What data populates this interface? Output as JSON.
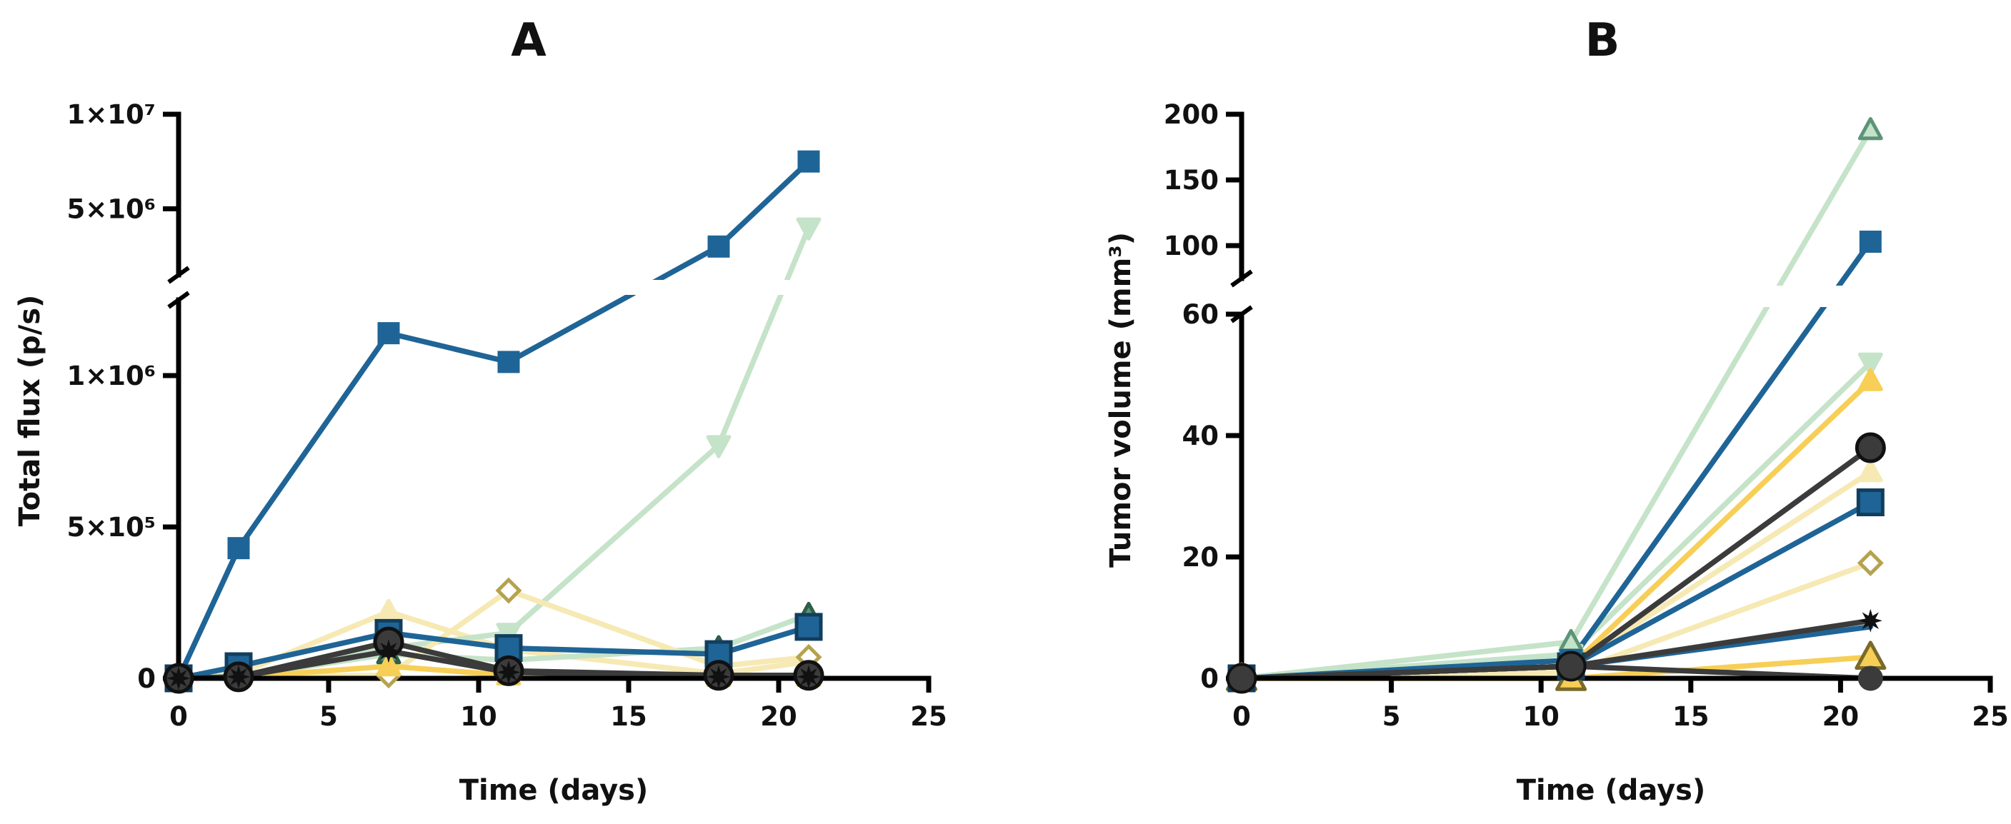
{
  "figure": {
    "panels": [
      "A",
      "B"
    ]
  },
  "colors": {
    "dark_blue": "#1f6496",
    "navy_outline": "#123e5e",
    "light_green": "#c5e3c8",
    "teal_green": "#5d9479",
    "yellow": "#f7cf57",
    "light_yellow": "#f6e9b3",
    "olive": "#b5a24f",
    "dark_gray": "#3b3b3b",
    "black": "#111111"
  },
  "chart_data": [
    {
      "id": "A",
      "type": "line",
      "title": "A",
      "xlabel": "Time (days)",
      "ylabel": "Total flux (p/s)",
      "xlim": [
        0,
        25
      ],
      "x_ticks": [
        0,
        5,
        10,
        15,
        20,
        25
      ],
      "x_tick_labels": [
        "0",
        "5",
        "10",
        "15",
        "20",
        "25"
      ],
      "y_axis_break": {
        "lower": [
          0,
          1250000
        ],
        "upper": [
          1500000,
          10000000
        ],
        "lower_ticks": [
          0,
          500000,
          1000000
        ],
        "lower_tick_labels": [
          "0",
          "5×10⁵",
          "1×10⁶"
        ],
        "upper_ticks": [
          5000000,
          10000000
        ],
        "upper_tick_labels": [
          "5×10⁶",
          "1×10⁷"
        ]
      },
      "series": [
        {
          "name": "pale yellow triangle",
          "color": "#f6e9b3",
          "marker": "triangle",
          "marker_fill": "#f6e9b3",
          "marker_stroke": "#f6e9b3",
          "x": [
            0,
            2,
            7,
            11,
            18,
            21
          ],
          "values": [
            0,
            15000,
            220000,
            95000,
            15000,
            55000
          ]
        },
        {
          "name": "light green inverted triangle",
          "color": "#c5e3c8",
          "marker": "triangle-down",
          "marker_fill": "#c5e3c8",
          "marker_stroke": "#c5e3c8",
          "x": [
            0,
            2,
            7,
            11,
            18,
            21
          ],
          "values": [
            0,
            8000,
            100000,
            150000,
            770000,
            4000000
          ]
        },
        {
          "name": "teal triangle",
          "color": "#c5e3c8",
          "marker": "triangle",
          "marker_fill": "#5d9479",
          "marker_stroke": "#2f5e49",
          "x": [
            0,
            2,
            7,
            11,
            18,
            21
          ],
          "values": [
            0,
            5000,
            80000,
            60000,
            100000,
            210000
          ]
        },
        {
          "name": "olive diamond",
          "color": "#f6e9b3",
          "marker": "diamond",
          "marker_fill": "#ffffff",
          "marker_stroke": "#b5a24f",
          "x": [
            0,
            2,
            7,
            11,
            18,
            21
          ],
          "values": [
            0,
            5000,
            10000,
            290000,
            40000,
            70000
          ]
        },
        {
          "name": "yellow triangle",
          "color": "#f7cf57",
          "marker": "triangle",
          "marker_fill": "#f7cf57",
          "marker_stroke": "#f7cf57",
          "x": [
            0,
            2,
            7,
            11,
            18,
            21
          ],
          "values": [
            0,
            3000,
            40000,
            10000,
            5000,
            5000
          ]
        },
        {
          "name": "blue square outlined",
          "color": "#1f6496",
          "marker": "square",
          "marker_fill": "#1f6496",
          "marker_stroke": "#123e5e",
          "x": [
            0,
            2,
            7,
            11,
            18,
            21
          ],
          "values": [
            0,
            40000,
            150000,
            100000,
            80000,
            170000
          ]
        },
        {
          "name": "blue square small",
          "color": "#1f6496",
          "marker": "square",
          "marker_fill": "#1f6496",
          "marker_stroke": "#1f6496",
          "x": [
            0,
            2,
            7,
            11,
            18,
            21
          ],
          "values": [
            0,
            430000,
            1140000,
            1045000,
            3000000,
            7500000
          ]
        },
        {
          "name": "dark gray circle",
          "color": "#3b3b3b",
          "marker": "circle",
          "marker_fill": "#3b3b3b",
          "marker_stroke": "#111111",
          "x": [
            0,
            2,
            7,
            11,
            18,
            21
          ],
          "values": [
            0,
            5000,
            120000,
            25000,
            10000,
            10000
          ]
        },
        {
          "name": "black asterisk",
          "color": "#3b3b3b",
          "marker": "star",
          "marker_fill": "#111111",
          "marker_stroke": "#111111",
          "x": [
            0,
            2,
            7,
            11,
            18,
            21
          ],
          "values": [
            0,
            5000,
            90000,
            20000,
            5000,
            5000
          ]
        }
      ]
    },
    {
      "id": "B",
      "type": "line",
      "title": "B",
      "xlabel": "Time (days)",
      "ylabel": "Tumor volume (mm³)",
      "xlim": [
        0,
        25
      ],
      "x_ticks": [
        0,
        5,
        10,
        15,
        20,
        25
      ],
      "x_tick_labels": [
        "0",
        "5",
        "10",
        "15",
        "20",
        "25"
      ],
      "y_axis_break": {
        "lower": [
          0,
          60
        ],
        "upper": [
          75,
          200
        ],
        "lower_ticks": [
          0,
          20,
          40,
          60
        ],
        "lower_tick_labels": [
          "0",
          "20",
          "40",
          "60"
        ],
        "upper_ticks": [
          100,
          150,
          200
        ],
        "upper_tick_labels": [
          "100",
          "150",
          "200"
        ]
      },
      "series": [
        {
          "name": "pale yellow triangle",
          "color": "#f6e9b3",
          "marker": "triangle",
          "marker_fill": "#f6e9b3",
          "marker_stroke": "#f6e9b3",
          "x": [
            0,
            11,
            21
          ],
          "values": [
            0,
            2,
            34
          ]
        },
        {
          "name": "light green inverted triangle",
          "color": "#c5e3c8",
          "marker": "triangle-down",
          "marker_fill": "#c5e3c8",
          "marker_stroke": "#c5e3c8",
          "x": [
            0,
            11,
            21
          ],
          "values": [
            0,
            4,
            52
          ]
        },
        {
          "name": "teal triangle",
          "color": "#c5e3c8",
          "marker": "triangle",
          "marker_fill": "#c5e3c8",
          "marker_stroke": "#5d9479",
          "x": [
            0,
            11,
            21
          ],
          "values": [
            0,
            6,
            188
          ]
        },
        {
          "name": "olive diamond",
          "color": "#f6e9b3",
          "marker": "diamond",
          "marker_fill": "#ffffff",
          "marker_stroke": "#b5a24f",
          "x": [
            0,
            11,
            21
          ],
          "values": [
            0,
            1,
            19
          ]
        },
        {
          "name": "yellow triangle",
          "color": "#f7cf57",
          "marker": "triangle",
          "marker_fill": "#f7cf57",
          "marker_stroke": "#f7cf57",
          "x": [
            0,
            11,
            21
          ],
          "values": [
            0,
            2,
            49
          ]
        },
        {
          "name": "yellow outlined triangle",
          "color": "#f7cf57",
          "marker": "triangle",
          "marker_fill": "#f7cf57",
          "marker_stroke": "#7a6a2a",
          "x": [
            0,
            11,
            21
          ],
          "values": [
            0,
            0,
            3.5
          ]
        },
        {
          "name": "blue square outlined",
          "color": "#1f6496",
          "marker": "square",
          "marker_fill": "#1f6496",
          "marker_stroke": "#123e5e",
          "x": [
            0,
            11,
            21
          ],
          "values": [
            0,
            2,
            29
          ]
        },
        {
          "name": "blue square small",
          "color": "#1f6496",
          "marker": "square",
          "marker_fill": "#1f6496",
          "marker_stroke": "#1f6496",
          "x": [
            0,
            11,
            21
          ],
          "values": [
            0,
            3,
            103
          ]
        },
        {
          "name": "blue line",
          "color": "#1f6496",
          "marker": "none",
          "marker_fill": "#1f6496",
          "marker_stroke": "#1f6496",
          "x": [
            0,
            11,
            21
          ],
          "values": [
            0,
            2,
            8.5
          ]
        },
        {
          "name": "dark gray circle",
          "color": "#3b3b3b",
          "marker": "circle",
          "marker_fill": "#3b3b3b",
          "marker_stroke": "#111111",
          "x": [
            0,
            11,
            21
          ],
          "values": [
            0,
            2,
            38
          ]
        },
        {
          "name": "black asterisk",
          "color": "#3b3b3b",
          "marker": "star",
          "marker_fill": "#111111",
          "marker_stroke": "#111111",
          "x": [
            0,
            11,
            21
          ],
          "values": [
            0,
            2,
            9.5
          ]
        },
        {
          "name": "dark gray circle small",
          "color": "#3b3b3b",
          "marker": "circle",
          "marker_fill": "#3b3b3b",
          "marker_stroke": "#3b3b3b",
          "x": [
            0,
            11,
            21
          ],
          "values": [
            0,
            2,
            0
          ]
        }
      ]
    }
  ]
}
